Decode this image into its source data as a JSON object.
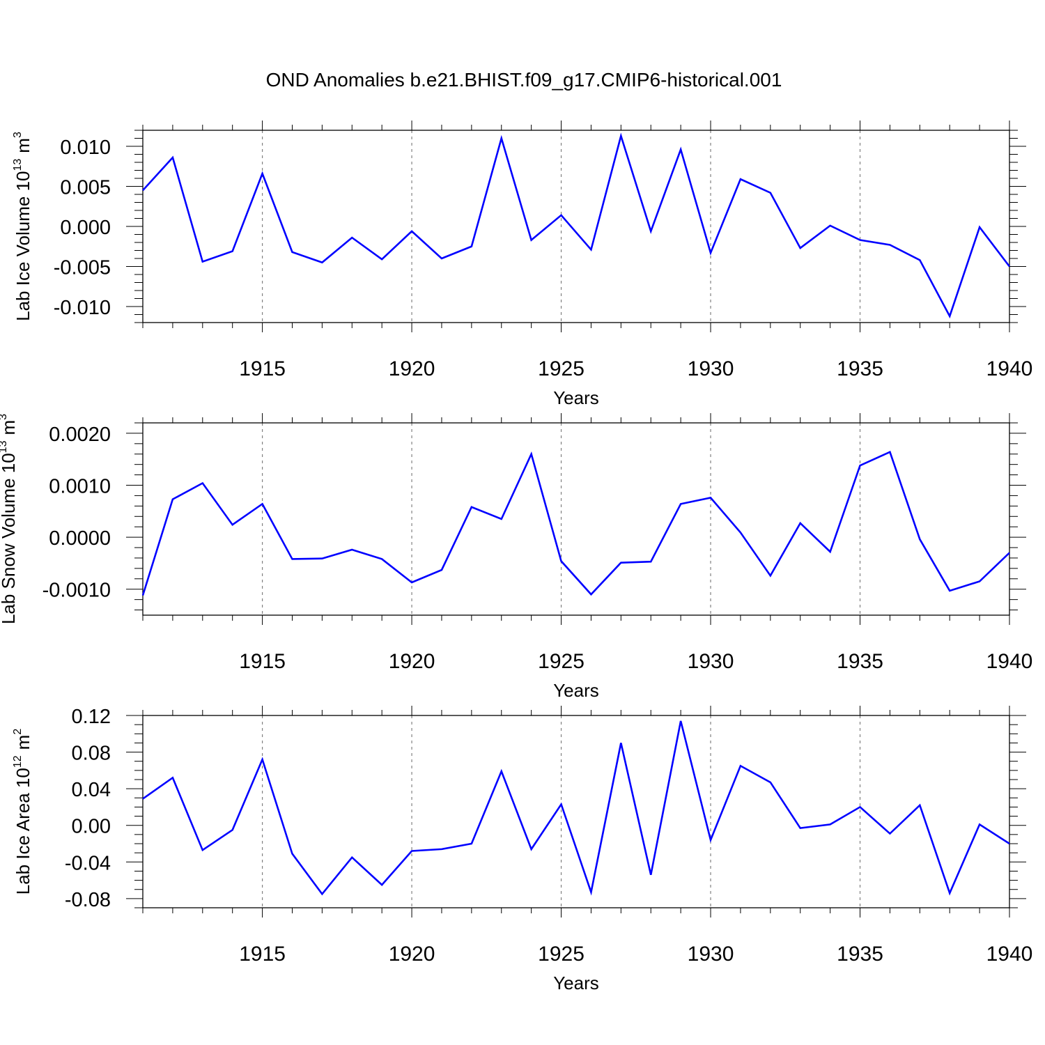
{
  "title": "OND Anomalies b.e21.BHIST.f09_g17.CMIP6-historical.001",
  "colors": {
    "line": "#0000ff",
    "axis": "#000000",
    "grid": "#808080"
  },
  "chart_data": [
    {
      "type": "line",
      "title": "OND Anomalies b.e21.BHIST.f09_g17.CMIP6-historical.001",
      "xlabel": "Years",
      "ylabel_main": "Lab Ice Volume 10",
      "ylabel_exp": "13",
      "ylabel_unit": "m",
      "ylabel_unit_exp": "3",
      "xlim": [
        1911,
        1940
      ],
      "ylim": [
        -0.012,
        0.012
      ],
      "xticks": [
        1915,
        1920,
        1925,
        1930,
        1935,
        1940
      ],
      "xtick_labels": [
        "1915",
        "1920",
        "1925",
        "1930",
        "1935",
        "1940"
      ],
      "yticks": [
        -0.01,
        -0.005,
        0.0,
        0.005,
        0.01
      ],
      "ytick_labels": [
        "-0.010",
        "-0.005",
        "0.000",
        "0.005",
        "0.010"
      ],
      "y_minor_step": 0.001,
      "grid": "vertical dashed at major x ticks",
      "x": [
        1911,
        1912,
        1913,
        1914,
        1915,
        1916,
        1917,
        1918,
        1919,
        1920,
        1921,
        1922,
        1923,
        1924,
        1925,
        1926,
        1927,
        1928,
        1929,
        1930,
        1931,
        1932,
        1933,
        1934,
        1935,
        1936,
        1937,
        1938,
        1939,
        1940
      ],
      "values": [
        0.0045,
        0.0086,
        -0.0044,
        -0.0031,
        0.0066,
        -0.0032,
        -0.0045,
        -0.0014,
        -0.0041,
        -0.0006,
        -0.004,
        -0.0025,
        0.011,
        -0.0017,
        0.0014,
        -0.0029,
        0.0113,
        -0.0006,
        0.0096,
        -0.0033,
        0.0059,
        0.0042,
        -0.0027,
        0.0001,
        -0.0017,
        -0.0023,
        -0.0042,
        -0.0112,
        -0.0001,
        -0.005
      ]
    },
    {
      "type": "line",
      "title": "",
      "xlabel": "Years",
      "ylabel_main": "Lab Snow Volume 10",
      "ylabel_exp": "13",
      "ylabel_unit": "m",
      "ylabel_unit_exp": "3",
      "xlim": [
        1911,
        1940
      ],
      "ylim": [
        -0.0015,
        0.0022
      ],
      "xticks": [
        1915,
        1920,
        1925,
        1930,
        1935,
        1940
      ],
      "xtick_labels": [
        "1915",
        "1920",
        "1925",
        "1930",
        "1935",
        "1940"
      ],
      "yticks": [
        -0.001,
        0.0,
        0.001,
        0.002
      ],
      "ytick_labels": [
        "-0.0010",
        "0.0000",
        "0.0010",
        "0.0020"
      ],
      "y_minor_step": 0.0002,
      "grid": "vertical dashed at major x ticks",
      "x": [
        1911,
        1912,
        1913,
        1914,
        1915,
        1916,
        1917,
        1918,
        1919,
        1920,
        1921,
        1922,
        1923,
        1924,
        1925,
        1926,
        1927,
        1928,
        1929,
        1930,
        1931,
        1932,
        1933,
        1934,
        1935,
        1936,
        1937,
        1938,
        1939,
        1940
      ],
      "values": [
        -0.00112,
        0.00073,
        0.00104,
        0.00024,
        0.00064,
        -0.00042,
        -0.00041,
        -0.00024,
        -0.00042,
        -0.00087,
        -0.00063,
        0.00058,
        0.00035,
        0.0016,
        -0.00046,
        -0.0011,
        -0.00049,
        -0.00047,
        0.00064,
        0.00076,
        9e-05,
        -0.00074,
        0.00027,
        -0.00028,
        0.00138,
        0.00164,
        -4e-05,
        -0.00103,
        -0.00085,
        -0.0003
      ]
    },
    {
      "type": "line",
      "title": "",
      "xlabel": "Years",
      "ylabel_main": "Lab Ice Area 10",
      "ylabel_exp": "12",
      "ylabel_unit": "m",
      "ylabel_unit_exp": "2",
      "xlim": [
        1911,
        1940
      ],
      "ylim": [
        -0.09,
        0.12
      ],
      "xticks": [
        1915,
        1920,
        1925,
        1930,
        1935,
        1940
      ],
      "xtick_labels": [
        "1915",
        "1920",
        "1925",
        "1930",
        "1935",
        "1940"
      ],
      "yticks": [
        -0.08,
        -0.04,
        0.0,
        0.04,
        0.08,
        0.12
      ],
      "ytick_labels": [
        "-0.08",
        "-0.04",
        "0.00",
        "0.04",
        "0.08",
        "0.12"
      ],
      "y_minor_step": 0.01,
      "grid": "vertical dashed at major x ticks",
      "x": [
        1911,
        1912,
        1913,
        1914,
        1915,
        1916,
        1917,
        1918,
        1919,
        1920,
        1921,
        1922,
        1923,
        1924,
        1925,
        1926,
        1927,
        1928,
        1929,
        1930,
        1931,
        1932,
        1933,
        1934,
        1935,
        1936,
        1937,
        1938,
        1939,
        1940
      ],
      "values": [
        0.029,
        0.052,
        -0.027,
        -0.005,
        0.072,
        -0.031,
        -0.075,
        -0.035,
        -0.065,
        -0.028,
        -0.026,
        -0.02,
        0.059,
        -0.026,
        0.023,
        -0.073,
        0.09,
        -0.054,
        0.114,
        -0.016,
        0.065,
        0.047,
        -0.003,
        0.001,
        0.02,
        -0.009,
        0.022,
        -0.074,
        0.001,
        -0.02
      ]
    }
  ]
}
